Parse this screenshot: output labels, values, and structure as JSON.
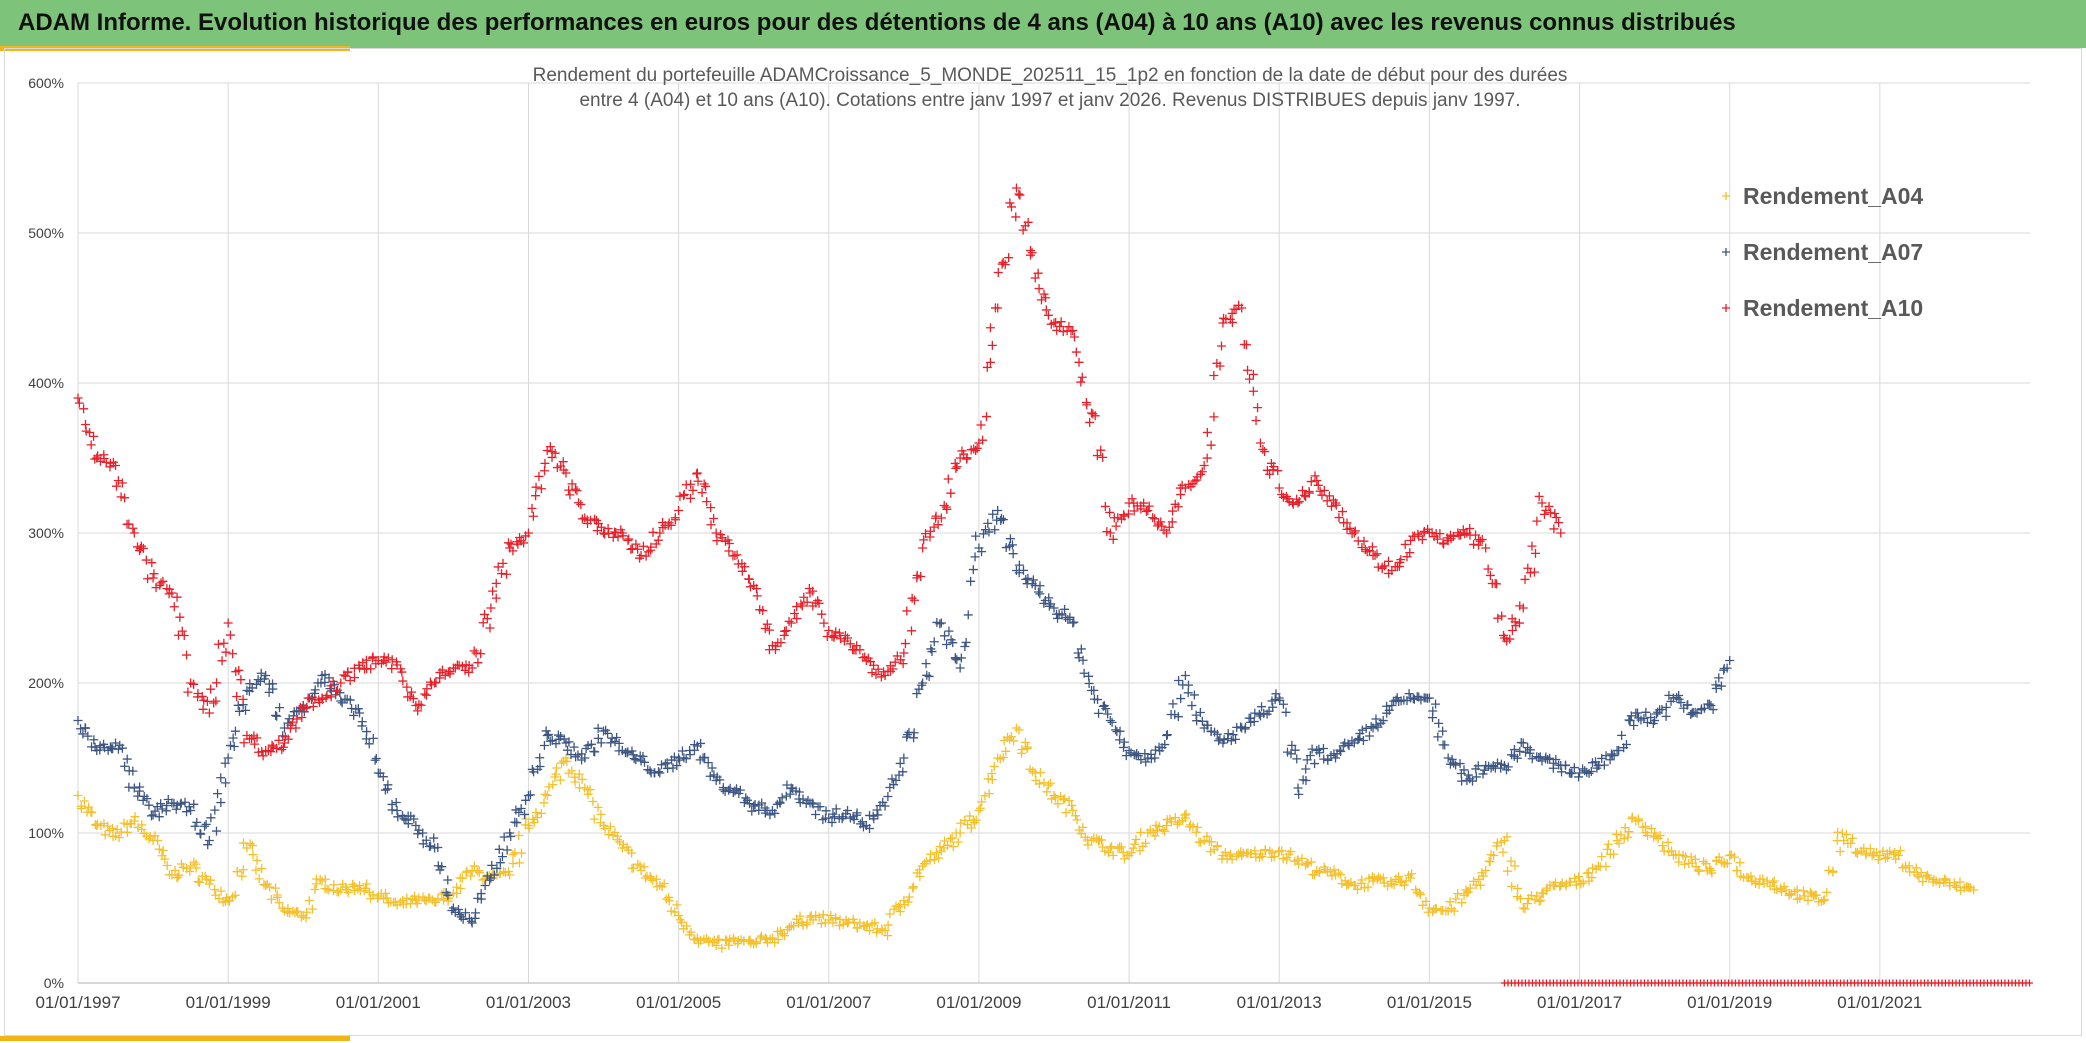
{
  "header": {
    "title": "ADAM Informe. Evolution historique des performances en euros pour des détentions de 4 ans (A04) à 10 ans (A10) avec les revenus connus distribués"
  },
  "chart_data": {
    "type": "scatter",
    "title_line1": "Rendement du portefeuille ADAMCroissance_5_MONDE_202511_15_1p2  en fonction de la date de début pour des durées",
    "title_line2": "entre 4 (A04) et 10 ans (A10). Cotations entre janv 1997 et janv 2026. Revenus DISTRIBUES depuis janv 1997.",
    "xlabel": "",
    "ylabel": "",
    "x_range": [
      "01/01/1997",
      "01/01/2023"
    ],
    "ylim": [
      0,
      600
    ],
    "y_ticks": [
      0,
      100,
      200,
      300,
      400,
      500,
      600
    ],
    "y_tick_labels": [
      "0%",
      "100%",
      "200%",
      "300%",
      "400%",
      "500%",
      "600%"
    ],
    "x_ticks": [
      "01/01/1997",
      "01/01/1999",
      "01/01/2001",
      "01/01/2003",
      "01/01/2005",
      "01/01/2007",
      "01/01/2009",
      "01/01/2011",
      "01/01/2013",
      "01/01/2015",
      "01/01/2017",
      "01/01/2019",
      "01/01/2021"
    ],
    "grid": true,
    "legend_position": "top-right",
    "marker": "+",
    "series": [
      {
        "name": "Rendement_A04",
        "color": "#f5c02c",
        "points": [
          [
            "01/01/1997",
            125
          ],
          [
            "01/04/1997",
            105
          ],
          [
            "01/07/1997",
            98
          ],
          [
            "01/10/1997",
            108
          ],
          [
            "01/01/1998",
            95
          ],
          [
            "01/04/1998",
            72
          ],
          [
            "01/07/1998",
            78
          ],
          [
            "01/10/1998",
            66
          ],
          [
            "01/01/1999",
            55
          ],
          [
            "01/04/1999",
            90
          ],
          [
            "01/07/1999",
            65
          ],
          [
            "01/10/1999",
            48
          ],
          [
            "01/01/2000",
            45
          ],
          [
            "01/04/2000",
            68
          ],
          [
            "01/07/2000",
            62
          ],
          [
            "01/10/2000",
            65
          ],
          [
            "01/01/2001",
            58
          ],
          [
            "01/04/2001",
            52
          ],
          [
            "01/07/2001",
            55
          ],
          [
            "01/10/2001",
            54
          ],
          [
            "01/01/2002",
            60
          ],
          [
            "01/04/2002",
            75
          ],
          [
            "01/07/2002",
            70
          ],
          [
            "01/10/2002",
            72
          ],
          [
            "01/01/2003",
            105
          ],
          [
            "01/04/2003",
            125
          ],
          [
            "01/07/2003",
            150
          ],
          [
            "01/10/2003",
            130
          ],
          [
            "01/01/2004",
            105
          ],
          [
            "01/04/2004",
            90
          ],
          [
            "01/07/2004",
            75
          ],
          [
            "01/10/2004",
            65
          ],
          [
            "01/01/2005",
            45
          ],
          [
            "01/04/2005",
            30
          ],
          [
            "01/07/2005",
            25
          ],
          [
            "01/10/2005",
            28
          ],
          [
            "01/01/2006",
            26
          ],
          [
            "01/04/2006",
            30
          ],
          [
            "01/07/2006",
            38
          ],
          [
            "01/10/2006",
            44
          ],
          [
            "01/01/2007",
            42
          ],
          [
            "01/04/2007",
            40
          ],
          [
            "01/07/2007",
            38
          ],
          [
            "01/10/2007",
            35
          ],
          [
            "01/01/2008",
            55
          ],
          [
            "01/04/2008",
            78
          ],
          [
            "01/07/2008",
            88
          ],
          [
            "01/10/2008",
            100
          ],
          [
            "01/01/2009",
            115
          ],
          [
            "01/04/2009",
            150
          ],
          [
            "01/07/2009",
            170
          ],
          [
            "01/10/2009",
            140
          ],
          [
            "01/01/2010",
            125
          ],
          [
            "01/04/2010",
            115
          ],
          [
            "01/07/2010",
            95
          ],
          [
            "01/10/2010",
            90
          ],
          [
            "01/01/2011",
            85
          ],
          [
            "01/04/2011",
            100
          ],
          [
            "01/07/2011",
            105
          ],
          [
            "01/10/2011",
            110
          ],
          [
            "01/01/2012",
            95
          ],
          [
            "01/04/2012",
            85
          ],
          [
            "01/07/2012",
            85
          ],
          [
            "01/10/2012",
            86
          ],
          [
            "01/01/2013",
            88
          ],
          [
            "01/04/2013",
            82
          ],
          [
            "01/07/2013",
            75
          ],
          [
            "01/10/2013",
            72
          ],
          [
            "01/01/2014",
            65
          ],
          [
            "01/04/2014",
            68
          ],
          [
            "01/07/2014",
            66
          ],
          [
            "01/10/2014",
            70
          ],
          [
            "01/01/2015",
            50
          ],
          [
            "01/04/2015",
            48
          ],
          [
            "01/07/2015",
            60
          ],
          [
            "01/10/2015",
            75
          ],
          [
            "01/01/2016",
            95
          ],
          [
            "01/04/2016",
            50
          ],
          [
            "01/07/2016",
            60
          ],
          [
            "01/10/2016",
            65
          ],
          [
            "01/01/2017",
            68
          ],
          [
            "01/04/2017",
            78
          ],
          [
            "01/07/2017",
            95
          ],
          [
            "01/10/2017",
            108
          ],
          [
            "01/01/2018",
            100
          ],
          [
            "01/04/2018",
            85
          ],
          [
            "01/07/2018",
            80
          ],
          [
            "01/10/2018",
            75
          ],
          [
            "01/01/2019",
            85
          ],
          [
            "01/04/2019",
            70
          ],
          [
            "01/07/2019",
            68
          ],
          [
            "01/10/2019",
            62
          ],
          [
            "01/01/2020",
            58
          ],
          [
            "01/04/2020",
            55
          ],
          [
            "01/07/2020",
            100
          ],
          [
            "01/10/2020",
            88
          ],
          [
            "01/01/2021",
            85
          ],
          [
            "01/04/2021",
            85
          ],
          [
            "01/07/2021",
            72
          ],
          [
            "01/10/2021",
            68
          ],
          [
            "01/01/2022",
            65
          ],
          [
            "01/04/2022",
            62
          ]
        ]
      },
      {
        "name": "Rendement_A07",
        "color": "#3d5683",
        "points": [
          [
            "01/01/1997",
            175
          ],
          [
            "01/04/1997",
            155
          ],
          [
            "01/07/1997",
            160
          ],
          [
            "01/10/1997",
            130
          ],
          [
            "01/01/1998",
            112
          ],
          [
            "01/04/1998",
            120
          ],
          [
            "01/07/1998",
            115
          ],
          [
            "01/10/1998",
            95
          ],
          [
            "01/01/1999",
            150
          ],
          [
            "01/04/1999",
            195
          ],
          [
            "01/07/1999",
            205
          ],
          [
            "01/10/1999",
            170
          ],
          [
            "01/01/2000",
            185
          ],
          [
            "01/04/2000",
            205
          ],
          [
            "01/07/2000",
            188
          ],
          [
            "01/10/2000",
            180
          ],
          [
            "01/01/2001",
            140
          ],
          [
            "01/04/2001",
            115
          ],
          [
            "01/07/2001",
            105
          ],
          [
            "01/10/2001",
            90
          ],
          [
            "01/01/2002",
            50
          ],
          [
            "01/04/2002",
            40
          ],
          [
            "01/07/2002",
            70
          ],
          [
            "01/10/2002",
            100
          ],
          [
            "01/01/2003",
            125
          ],
          [
            "01/04/2003",
            165
          ],
          [
            "01/07/2003",
            160
          ],
          [
            "01/10/2003",
            150
          ],
          [
            "01/01/2004",
            168
          ],
          [
            "01/04/2004",
            155
          ],
          [
            "01/07/2004",
            148
          ],
          [
            "01/10/2004",
            140
          ],
          [
            "01/01/2005",
            150
          ],
          [
            "01/04/2005",
            158
          ],
          [
            "01/07/2005",
            135
          ],
          [
            "01/10/2005",
            128
          ],
          [
            "01/01/2006",
            118
          ],
          [
            "01/04/2006",
            115
          ],
          [
            "01/07/2006",
            130
          ],
          [
            "01/10/2006",
            120
          ],
          [
            "01/01/2007",
            110
          ],
          [
            "01/04/2007",
            115
          ],
          [
            "01/07/2007",
            105
          ],
          [
            "01/10/2007",
            118
          ],
          [
            "01/01/2008",
            150
          ],
          [
            "01/04/2008",
            200
          ],
          [
            "01/07/2008",
            240
          ],
          [
            "01/10/2008",
            210
          ],
          [
            "01/01/2009",
            290
          ],
          [
            "01/04/2009",
            315
          ],
          [
            "01/07/2009",
            275
          ],
          [
            "01/10/2009",
            265
          ],
          [
            "01/01/2010",
            250
          ],
          [
            "01/04/2010",
            240
          ],
          [
            "01/07/2010",
            195
          ],
          [
            "01/10/2010",
            175
          ],
          [
            "01/01/2011",
            155
          ],
          [
            "01/04/2011",
            150
          ],
          [
            "01/07/2011",
            165
          ],
          [
            "01/10/2011",
            205
          ],
          [
            "01/01/2012",
            170
          ],
          [
            "01/04/2012",
            160
          ],
          [
            "01/07/2012",
            170
          ],
          [
            "01/10/2012",
            178
          ],
          [
            "01/01/2013",
            190
          ],
          [
            "01/04/2013",
            130
          ],
          [
            "01/07/2013",
            155
          ],
          [
            "01/10/2013",
            150
          ],
          [
            "01/01/2014",
            160
          ],
          [
            "01/04/2014",
            170
          ],
          [
            "01/07/2014",
            185
          ],
          [
            "01/10/2014",
            190
          ],
          [
            "01/01/2015",
            190
          ],
          [
            "01/04/2015",
            150
          ],
          [
            "01/07/2015",
            135
          ],
          [
            "01/10/2015",
            145
          ],
          [
            "01/01/2016",
            145
          ],
          [
            "01/04/2016",
            160
          ],
          [
            "01/07/2016",
            148
          ],
          [
            "01/10/2016",
            145
          ],
          [
            "01/01/2017",
            140
          ],
          [
            "01/04/2017",
            145
          ],
          [
            "01/07/2017",
            155
          ],
          [
            "01/10/2017",
            180
          ],
          [
            "01/01/2018",
            175
          ],
          [
            "01/04/2018",
            190
          ],
          [
            "01/07/2018",
            180
          ],
          [
            "01/10/2018",
            185
          ],
          [
            "01/01/2019",
            215
          ]
        ]
      },
      {
        "name": "Rendement_A10",
        "color": "#e8202a",
        "points": [
          [
            "01/01/1997",
            390
          ],
          [
            "01/04/1997",
            350
          ],
          [
            "01/07/1997",
            345
          ],
          [
            "01/10/1997",
            300
          ],
          [
            "01/01/1998",
            270
          ],
          [
            "01/04/1998",
            260
          ],
          [
            "01/07/1998",
            200
          ],
          [
            "01/10/1998",
            180
          ],
          [
            "01/01/1999",
            240
          ],
          [
            "01/04/1999",
            165
          ],
          [
            "01/07/1999",
            155
          ],
          [
            "01/10/1999",
            160
          ],
          [
            "01/01/2000",
            185
          ],
          [
            "01/04/2000",
            190
          ],
          [
            "01/07/2000",
            200
          ],
          [
            "01/10/2000",
            210
          ],
          [
            "01/01/2001",
            215
          ],
          [
            "01/04/2001",
            212
          ],
          [
            "01/07/2001",
            185
          ],
          [
            "01/10/2001",
            200
          ],
          [
            "01/01/2002",
            210
          ],
          [
            "01/04/2002",
            210
          ],
          [
            "01/07/2002",
            250
          ],
          [
            "01/10/2002",
            290
          ],
          [
            "01/01/2003",
            300
          ],
          [
            "01/04/2003",
            355
          ],
          [
            "01/07/2003",
            340
          ],
          [
            "01/10/2003",
            310
          ],
          [
            "01/01/2004",
            300
          ],
          [
            "01/04/2004",
            300
          ],
          [
            "01/07/2004",
            285
          ],
          [
            "01/10/2004",
            300
          ],
          [
            "01/01/2005",
            315
          ],
          [
            "01/04/2005",
            340
          ],
          [
            "01/07/2005",
            300
          ],
          [
            "01/10/2005",
            285
          ],
          [
            "01/01/2006",
            265
          ],
          [
            "01/04/2006",
            225
          ],
          [
            "01/07/2006",
            240
          ],
          [
            "01/10/2006",
            260
          ],
          [
            "01/01/2007",
            235
          ],
          [
            "01/04/2007",
            230
          ],
          [
            "01/07/2007",
            215
          ],
          [
            "01/10/2007",
            205
          ],
          [
            "01/01/2008",
            220
          ],
          [
            "01/04/2008",
            290
          ],
          [
            "01/07/2008",
            310
          ],
          [
            "01/10/2008",
            350
          ],
          [
            "01/01/2009",
            360
          ],
          [
            "01/04/2009",
            450
          ],
          [
            "01/07/2009",
            530
          ],
          [
            "01/10/2009",
            470
          ],
          [
            "01/01/2010",
            440
          ],
          [
            "01/04/2010",
            435
          ],
          [
            "01/07/2010",
            380
          ],
          [
            "01/10/2010",
            300
          ],
          [
            "01/01/2011",
            320
          ],
          [
            "01/04/2011",
            315
          ],
          [
            "01/07/2011",
            300
          ],
          [
            "01/10/2011",
            330
          ],
          [
            "01/01/2012",
            345
          ],
          [
            "01/04/2012",
            440
          ],
          [
            "01/07/2012",
            450
          ],
          [
            "01/10/2012",
            360
          ],
          [
            "01/01/2013",
            330
          ],
          [
            "01/04/2013",
            320
          ],
          [
            "01/07/2013",
            335
          ],
          [
            "01/10/2013",
            320
          ],
          [
            "01/01/2014",
            300
          ],
          [
            "01/04/2014",
            285
          ],
          [
            "01/07/2014",
            275
          ],
          [
            "01/10/2014",
            295
          ],
          [
            "01/01/2015",
            300
          ],
          [
            "01/04/2015",
            295
          ],
          [
            "01/07/2015",
            300
          ],
          [
            "01/10/2015",
            290
          ],
          [
            "01/01/2016",
            230
          ],
          [
            "01/04/2016",
            250
          ],
          [
            "01/07/2016",
            320
          ],
          [
            "01/10/2016",
            300
          ]
        ]
      }
    ],
    "baseline_band": {
      "name": "Rendement_A10",
      "from": "01/01/2016",
      "to": "01/01/2023",
      "value": 0,
      "color": "#e8202a"
    }
  }
}
